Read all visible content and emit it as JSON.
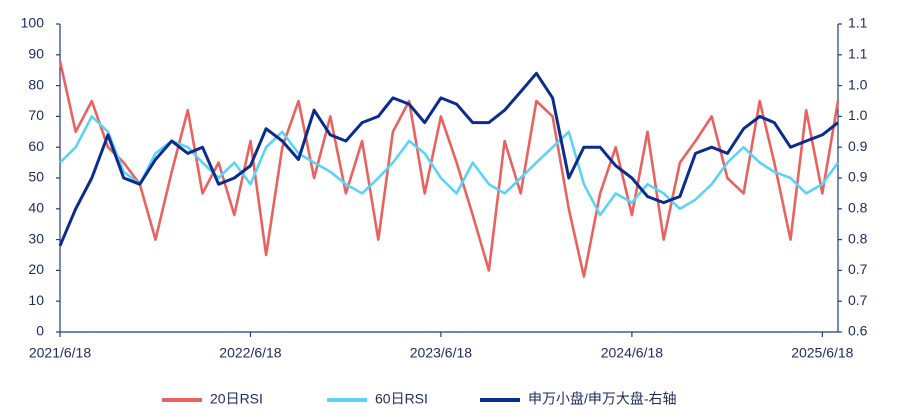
{
  "chart_data": {
    "type": "line",
    "x": [
      "2021/6/18",
      "2021/7/18",
      "2021/8/18",
      "2021/9/18",
      "2021/10/18",
      "2021/11/18",
      "2021/12/18",
      "2022/1/18",
      "2022/2/18",
      "2022/3/18",
      "2022/4/18",
      "2022/5/18",
      "2022/6/18",
      "2022/7/18",
      "2022/8/18",
      "2022/9/18",
      "2022/10/18",
      "2022/11/18",
      "2022/12/18",
      "2023/1/18",
      "2023/2/18",
      "2023/3/18",
      "2023/4/18",
      "2023/5/18",
      "2023/6/18",
      "2023/7/18",
      "2023/8/18",
      "2023/9/18",
      "2023/10/18",
      "2023/11/18",
      "2023/12/18",
      "2024/1/18",
      "2024/2/18",
      "2024/3/18",
      "2024/4/18",
      "2024/5/18",
      "2024/6/18",
      "2024/7/18",
      "2024/8/18",
      "2024/9/18",
      "2024/10/18",
      "2024/11/18",
      "2024/12/18",
      "2025/1/18",
      "2025/2/18",
      "2025/3/18",
      "2025/4/18",
      "2025/5/18",
      "2025/6/18",
      "2025/7/18"
    ],
    "xlim": [
      "2021/6/18",
      "2025/7/18"
    ],
    "xticks": [
      "2021/6/18",
      "2022/6/18",
      "2023/6/18",
      "2024/6/18",
      "2025/6/18"
    ],
    "ylim": [
      0,
      100
    ],
    "yticks": [
      0,
      10,
      20,
      30,
      40,
      50,
      60,
      70,
      80,
      90,
      100
    ],
    "y2lim": [
      0.6,
      1.1
    ],
    "y2ticks": [
      {
        "value": 0.6,
        "label": "0.6"
      },
      {
        "value": 0.65,
        "label": "0.7"
      },
      {
        "value": 0.7,
        "label": "0.7"
      },
      {
        "value": 0.75,
        "label": "0.8"
      },
      {
        "value": 0.8,
        "label": "0.8"
      },
      {
        "value": 0.85,
        "label": "0.9"
      },
      {
        "value": 0.9,
        "label": "0.9"
      },
      {
        "value": 0.95,
        "label": "1.0"
      },
      {
        "value": 1.0,
        "label": "1.0"
      },
      {
        "value": 1.05,
        "label": "1.1"
      },
      {
        "value": 1.1,
        "label": "1.1"
      }
    ],
    "grid": false,
    "legend": "bottom",
    "series": [
      {
        "name": "20日RSI",
        "color": "#e8625f",
        "values": [
          88,
          65,
          75,
          60,
          55,
          48,
          30,
          52,
          72,
          45,
          55,
          38,
          62,
          25,
          60,
          75,
          50,
          70,
          45,
          62,
          30,
          65,
          75,
          45,
          70,
          55,
          38,
          20,
          62,
          45,
          75,
          70,
          40,
          18,
          45,
          60,
          38,
          65,
          30,
          55,
          62,
          70,
          50,
          45,
          75,
          55,
          30,
          72,
          45,
          75
        ]
      },
      {
        "name": "60日RSI",
        "color": "#5cd3f5",
        "values": [
          55,
          60,
          70,
          65,
          52,
          48,
          58,
          62,
          60,
          55,
          50,
          55,
          48,
          60,
          65,
          58,
          55,
          52,
          48,
          45,
          50,
          55,
          62,
          58,
          50,
          45,
          55,
          48,
          45,
          50,
          55,
          60,
          65,
          48,
          38,
          45,
          42,
          48,
          45,
          40,
          43,
          48,
          55,
          60,
          55,
          52,
          50,
          45,
          48,
          55
        ]
      },
      {
        "name": "申万小盘/申万大盘-右轴",
        "color": "#0b2c8c",
        "axis": "y2",
        "values": [
          0.74,
          0.8,
          0.85,
          0.92,
          0.85,
          0.84,
          0.88,
          0.91,
          0.89,
          0.9,
          0.84,
          0.85,
          0.87,
          0.93,
          0.91,
          0.88,
          0.96,
          0.92,
          0.91,
          0.94,
          0.95,
          0.98,
          0.97,
          0.94,
          0.98,
          0.97,
          0.94,
          0.94,
          0.96,
          0.99,
          1.02,
          0.98,
          0.85,
          0.9,
          0.9,
          0.87,
          0.85,
          0.82,
          0.81,
          0.82,
          0.89,
          0.9,
          0.89,
          0.93,
          0.95,
          0.94,
          0.9,
          0.91,
          0.92,
          0.94
        ]
      }
    ]
  }
}
